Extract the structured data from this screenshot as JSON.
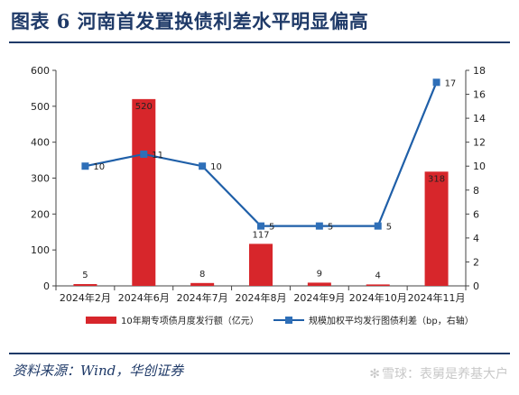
{
  "title": "图表 6   河南首发置换债利差水平明显偏高",
  "source": "资料来源：Wind，华创证券",
  "watermark": "雪球：表舅是养基大户",
  "chart_data": {
    "type": "bar",
    "categories": [
      "2024年2月",
      "2024年6月",
      "2024年7月",
      "2024年8月",
      "2024年9月",
      "2024年10月",
      "2024年11月"
    ],
    "series": [
      {
        "name": "10年期专项债月度发行额（亿元）",
        "type": "bar",
        "axis": "left",
        "values": [
          5,
          520,
          8,
          117,
          9,
          4,
          318
        ]
      },
      {
        "name": "规模加权平均发行图债利差（bp，右轴）",
        "type": "line",
        "axis": "right",
        "values": [
          10,
          11,
          10,
          5,
          5,
          5,
          17
        ]
      }
    ],
    "ylim_left": [
      0,
      600
    ],
    "yticks_left": [
      0,
      100,
      200,
      300,
      400,
      500,
      600
    ],
    "ylim_right": [
      0,
      18
    ],
    "yticks_right": [
      0,
      2,
      4,
      6,
      8,
      10,
      12,
      14,
      16,
      18
    ],
    "legend_position": "bottom",
    "grid": false,
    "colors": {
      "bar": "#d7262b",
      "line": "#1f5fa8",
      "marker": "#2e6fb8"
    }
  }
}
